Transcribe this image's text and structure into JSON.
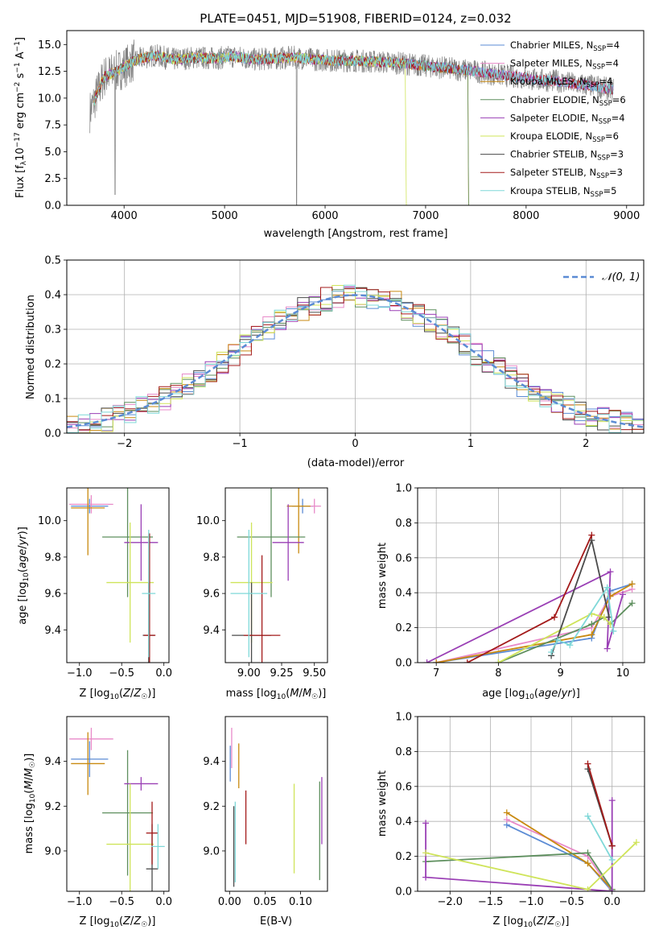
{
  "chart_data": [
    {
      "id": "spectrum",
      "type": "line",
      "title": "PLATE=0451, MJD=51908, FIBERID=0124, z=0.032",
      "xlabel": "wavelength [Angstrom, rest frame]",
      "ylabel": "Flux [f_λ 10^-17 erg cm^-2 s^-1 A^-1]",
      "xlim": [
        3430,
        9170
      ],
      "ylim": [
        0,
        16.3
      ],
      "xticks": [
        4000,
        5000,
        6000,
        7000,
        8000,
        9000
      ],
      "yticks": [
        0.0,
        2.5,
        5.0,
        7.5,
        10.0,
        12.5,
        15.0
      ],
      "legend_placement": "top-right",
      "series": [
        {
          "name": "Chabrier MILES, N_SSP=4",
          "color": "#5b8bd4"
        },
        {
          "name": "Salpeter MILES, N_SSP=4",
          "color": "#e88ac9"
        },
        {
          "name": "Kroupa MILES, N_SSP=4",
          "color": "#c98a10"
        },
        {
          "name": "Chabrier ELODIE, N_SSP=6",
          "color": "#5e8f5e"
        },
        {
          "name": "Salpeter ELODIE, N_SSP=4",
          "color": "#9a3fb5"
        },
        {
          "name": "Kroupa ELODIE, N_SSP=6",
          "color": "#cfe45a"
        },
        {
          "name": "Chabrier STELIB, N_SSP=3",
          "color": "#4a4a4a"
        },
        {
          "name": "Salpeter STELIB, N_SSP=3",
          "color": "#a31a1a"
        },
        {
          "name": "Kroupa STELIB, N_SSP=5",
          "color": "#7fd8d8"
        }
      ],
      "continuum": {
        "x": [
          3650,
          3800,
          3950,
          4100,
          4300,
          4500,
          4700,
          4900,
          5100,
          5300,
          5500,
          5700,
          5900,
          6100,
          6300,
          6500,
          6700,
          6900,
          7100,
          7300,
          7500,
          7700,
          7900,
          8100,
          8300,
          8500,
          8700,
          8850
        ],
        "y": [
          8.5,
          12.0,
          12.6,
          13.5,
          14.0,
          13.6,
          13.8,
          13.7,
          13.9,
          13.6,
          13.7,
          13.8,
          13.6,
          13.5,
          13.5,
          13.4,
          13.3,
          13.1,
          12.9,
          12.7,
          12.5,
          12.2,
          12.0,
          11.7,
          11.6,
          11.3,
          11.1,
          10.8
        ]
      },
      "truncations": [
        {
          "series": "Kroupa ELODIE, N_SSP=6",
          "end_x": 6800
        },
        {
          "series": "Kroupa MILES, N_SSP=4",
          "end_x": 7420
        },
        {
          "series": "Chabrier ELODIE, N_SSP=6",
          "end_x": 7420
        }
      ]
    },
    {
      "id": "residuals",
      "type": "line",
      "xlabel": "(data-model)/error",
      "ylabel": "Normed distribution",
      "xlim": [
        -2.5,
        2.5
      ],
      "ylim": [
        0,
        0.5
      ],
      "xticks": [
        -2,
        -1,
        0,
        1,
        2
      ],
      "yticks": [
        0.0,
        0.1,
        0.2,
        0.3,
        0.4,
        0.5
      ],
      "grid": true,
      "legend_placement": "top-right",
      "reference": {
        "name": "𝒩(0, 1)",
        "color": "#5b8bd4",
        "style": "dashed"
      },
      "bin_width": 0.1
    },
    {
      "id": "age-vs-Z",
      "type": "scatter",
      "xlabel": "Z [log10(Z/Z☉)]",
      "ylabel": "age [log10(age/yr)]",
      "xlim": [
        -1.15,
        0.06
      ],
      "ylim": [
        9.22,
        10.18
      ],
      "xticks": [
        -1.0,
        -0.5,
        0.0
      ],
      "yticks": [
        9.4,
        9.6,
        9.8,
        10.0
      ],
      "points": [
        {
          "series": "Chabrier MILES, N_SSP=4",
          "x": -0.88,
          "y": 10.08,
          "xerr": 0.22,
          "yerr": 0.04
        },
        {
          "series": "Salpeter MILES, N_SSP=4",
          "x": -0.86,
          "y": 10.09,
          "xerr": 0.26,
          "yerr": 0.05
        },
        {
          "series": "Kroupa MILES, N_SSP=4",
          "x": -0.9,
          "y": 10.07,
          "xerr": 0.2,
          "yerr": 0.26
        },
        {
          "series": "Chabrier ELODIE, N_SSP=6",
          "x": -0.43,
          "y": 9.91,
          "xerr": 0.3,
          "yerr": 0.33
        },
        {
          "series": "Salpeter ELODIE, N_SSP=4",
          "x": -0.27,
          "y": 9.88,
          "xerr": 0.2,
          "yerr": 0.21
        },
        {
          "series": "Kroupa ELODIE, N_SSP=6",
          "x": -0.4,
          "y": 9.66,
          "xerr": 0.28,
          "yerr": 0.33
        },
        {
          "series": "Chabrier STELIB, N_SSP=3",
          "x": -0.18,
          "y": 9.37,
          "xerr": 0.07,
          "yerr": 0.29
        },
        {
          "series": "Salpeter STELIB, N_SSP=3",
          "x": -0.17,
          "y": 9.37,
          "xerr": 0.07,
          "yerr": 0.56
        },
        {
          "series": "Kroupa STELIB, N_SSP=5",
          "x": -0.18,
          "y": 9.6,
          "xerr": 0.08,
          "yerr": 0.35
        }
      ]
    },
    {
      "id": "age-vs-mass",
      "type": "scatter",
      "xlabel": "mass [log10(M/M☉)]",
      "ylabel": "",
      "xlim": [
        8.82,
        9.6
      ],
      "ylim": [
        9.22,
        10.18
      ],
      "xticks": [
        9.0,
        9.25,
        9.5
      ],
      "yticks": [
        9.4,
        9.6,
        9.8,
        10.0
      ],
      "points": [
        {
          "series": "Chabrier MILES, N_SSP=4",
          "x": 9.41,
          "y": 10.08,
          "xerr": 0.08,
          "yerr": 0.04
        },
        {
          "series": "Salpeter MILES, N_SSP=4",
          "x": 9.5,
          "y": 10.08,
          "xerr": 0.05,
          "yerr": 0.04
        },
        {
          "series": "Kroupa MILES, N_SSP=4",
          "x": 9.38,
          "y": 10.08,
          "xerr": 0.09,
          "yerr": 0.26
        },
        {
          "series": "Chabrier ELODIE, N_SSP=6",
          "x": 9.17,
          "y": 9.91,
          "xerr": 0.26,
          "yerr": 0.33
        },
        {
          "series": "Salpeter ELODIE, N_SSP=4",
          "x": 9.3,
          "y": 9.88,
          "xerr": 0.12,
          "yerr": 0.21
        },
        {
          "series": "Kroupa ELODIE, N_SSP=6",
          "x": 9.02,
          "y": 9.66,
          "xerr": 0.16,
          "yerr": 0.33
        },
        {
          "series": "Chabrier STELIB, N_SSP=3",
          "x": 9.02,
          "y": 9.37,
          "xerr": 0.15,
          "yerr": 0.29
        },
        {
          "series": "Salpeter STELIB, N_SSP=3",
          "x": 9.1,
          "y": 9.37,
          "xerr": 0.14,
          "yerr": 0.44
        },
        {
          "series": "Kroupa STELIB, N_SSP=5",
          "x": 9.0,
          "y": 9.6,
          "xerr": 0.14,
          "yerr": 0.35
        }
      ]
    },
    {
      "id": "weight-vs-age",
      "type": "line",
      "xlabel": "age [log10(age/yr)]",
      "ylabel": "mass weight",
      "xlim": [
        6.7,
        10.35
      ],
      "ylim": [
        0,
        1
      ],
      "xticks": [
        7,
        8,
        9,
        10
      ],
      "yticks": [
        0.0,
        0.2,
        0.4,
        0.6,
        0.8,
        1.0
      ],
      "grid": true,
      "series": [
        {
          "name": "Chabrier MILES, N_SSP=4",
          "x": [
            7.0,
            9.5,
            9.8,
            10.15
          ],
          "y": [
            0.0,
            0.14,
            0.41,
            0.45
          ]
        },
        {
          "name": "Salpeter MILES, N_SSP=4",
          "x": [
            7.0,
            9.5,
            9.8,
            10.15
          ],
          "y": [
            0.0,
            0.2,
            0.38,
            0.42
          ]
        },
        {
          "name": "Kroupa MILES, N_SSP=4",
          "x": [
            7.0,
            9.5,
            9.8,
            10.15
          ],
          "y": [
            0.0,
            0.16,
            0.38,
            0.45
          ]
        },
        {
          "name": "Chabrier ELODIE, N_SSP=6",
          "x": [
            8.0,
            9.5,
            9.7,
            9.8,
            10.15
          ],
          "y": [
            0.0,
            0.22,
            0.26,
            0.22,
            0.34
          ]
        },
        {
          "name": "Salpeter ELODIE, N_SSP=4",
          "x": [
            6.85,
            9.8,
            9.75,
            10.0
          ],
          "y": [
            0.0,
            0.52,
            0.08,
            0.39
          ]
        },
        {
          "name": "Kroupa ELODIE, N_SSP=6",
          "x": [
            8.0,
            9.5,
            9.7,
            9.8
          ],
          "y": [
            0.0,
            0.28,
            0.26,
            0.22
          ]
        },
        {
          "name": "Chabrier STELIB, N_SSP=3",
          "x": [
            8.85,
            9.5,
            9.78
          ],
          "y": [
            0.04,
            0.7,
            0.26
          ]
        },
        {
          "name": "Salpeter STELIB, N_SSP=3",
          "x": [
            7.5,
            8.9,
            9.5
          ],
          "y": [
            0.0,
            0.26,
            0.73
          ]
        },
        {
          "name": "Kroupa STELIB, N_SSP=5",
          "x": [
            8.85,
            8.95,
            9.15,
            9.75,
            9.85
          ],
          "y": [
            0.06,
            0.13,
            0.1,
            0.43,
            0.18
          ]
        }
      ]
    },
    {
      "id": "mass-vs-Z",
      "type": "scatter",
      "xlabel": "Z [log10(Z/Z☉)]",
      "ylabel": "mass [log10(M/M☉)]",
      "xlim": [
        -1.15,
        0.06
      ],
      "ylim": [
        8.82,
        9.6
      ],
      "xticks": [
        -1.0,
        -0.5,
        0.0
      ],
      "yticks": [
        9.0,
        9.2,
        9.4
      ],
      "points": [
        {
          "series": "Chabrier MILES, N_SSP=4",
          "x": -0.88,
          "y": 9.41,
          "xerr": 0.22,
          "yerr": 0.08
        },
        {
          "series": "Salpeter MILES, N_SSP=4",
          "x": -0.86,
          "y": 9.5,
          "xerr": 0.26,
          "yerr": 0.05
        },
        {
          "series": "Kroupa MILES, N_SSP=4",
          "x": -0.9,
          "y": 9.39,
          "xerr": 0.2,
          "yerr": 0.14
        },
        {
          "series": "Chabrier ELODIE, N_SSP=6",
          "x": -0.43,
          "y": 9.17,
          "xerr": 0.3,
          "yerr": 0.28
        },
        {
          "series": "Salpeter ELODIE, N_SSP=4",
          "x": -0.27,
          "y": 9.3,
          "xerr": 0.2,
          "yerr": 0.03
        },
        {
          "series": "Kroupa ELODIE, N_SSP=6",
          "x": -0.4,
          "y": 9.03,
          "xerr": 0.28,
          "yerr": 0.27
        },
        {
          "series": "Chabrier STELIB, N_SSP=3",
          "x": -0.14,
          "y": 8.92,
          "xerr": 0.07,
          "yerr": 0.2
        },
        {
          "series": "Salpeter STELIB, N_SSP=3",
          "x": -0.14,
          "y": 9.08,
          "xerr": 0.07,
          "yerr": 0.14
        },
        {
          "series": "Kroupa STELIB, N_SSP=5",
          "x": -0.07,
          "y": 9.02,
          "xerr": 0.08,
          "yerr": 0.1
        }
      ]
    },
    {
      "id": "mass-vs-EBV",
      "type": "scatter",
      "xlabel": "E(B-V)",
      "ylabel": "",
      "xlim": [
        -0.006,
        0.138
      ],
      "ylim": [
        8.82,
        9.6
      ],
      "xticks": [
        0.0,
        0.05,
        0.1
      ],
      "yticks": [
        9.0,
        9.2,
        9.4
      ],
      "points": [
        {
          "series": "Chabrier MILES, N_SSP=4",
          "x": 0.001,
          "y": 9.39,
          "yerr": 0.08
        },
        {
          "series": "Salpeter MILES, N_SSP=4",
          "x": 0.003,
          "y": 9.46,
          "yerr": 0.09
        },
        {
          "series": "Kroupa MILES, N_SSP=4",
          "x": 0.013,
          "y": 9.38,
          "yerr": 0.1
        },
        {
          "series": "Chabrier ELODIE, N_SSP=6",
          "x": 0.127,
          "y": 9.09,
          "yerr": 0.22
        },
        {
          "series": "Salpeter ELODIE, N_SSP=4",
          "x": 0.13,
          "y": 9.18,
          "yerr": 0.15
        },
        {
          "series": "Kroupa ELODIE, N_SSP=6",
          "x": 0.091,
          "y": 9.1,
          "yerr": 0.2
        },
        {
          "series": "Chabrier STELIB, N_SSP=3",
          "x": 0.006,
          "y": 9.02,
          "yerr": 0.18
        },
        {
          "series": "Salpeter STELIB, N_SSP=3",
          "x": 0.023,
          "y": 9.15,
          "yerr": 0.12
        },
        {
          "series": "Kroupa STELIB, N_SSP=5",
          "x": 0.008,
          "y": 9.04,
          "yerr": 0.18
        }
      ]
    },
    {
      "id": "weight-vs-Z",
      "type": "line",
      "xlabel": "Z [log10(Z/Z☉)]",
      "ylabel": "mass weight",
      "xlim": [
        -2.4,
        0.4
      ],
      "ylim": [
        0,
        1
      ],
      "xticks": [
        -2.0,
        -1.5,
        -1.0,
        -0.5,
        0.0
      ],
      "yticks": [
        0.0,
        0.2,
        0.4,
        0.6,
        0.8,
        1.0
      ],
      "grid": true,
      "series": [
        {
          "name": "Chabrier MILES, N_SSP=4",
          "x": [
            -1.3,
            -0.3,
            0.0
          ],
          "y": [
            0.38,
            0.16,
            0.0
          ]
        },
        {
          "name": "Salpeter MILES, N_SSP=4",
          "x": [
            -1.3,
            -0.3,
            0.0
          ],
          "y": [
            0.41,
            0.2,
            0.0
          ]
        },
        {
          "name": "Kroupa MILES, N_SSP=4",
          "x": [
            -1.3,
            -0.3,
            0.0
          ],
          "y": [
            0.45,
            0.16,
            0.01
          ]
        },
        {
          "name": "Chabrier ELODIE, N_SSP=6",
          "x": [
            -2.3,
            -0.3,
            0.0
          ],
          "y": [
            0.17,
            0.22,
            0.01
          ]
        },
        {
          "name": "Salpeter ELODIE, N_SSP=4",
          "x": [
            -2.3,
            -2.3,
            0.0,
            0.0,
            0.0
          ],
          "y": [
            0.39,
            0.08,
            0.0,
            0.26,
            0.52
          ]
        },
        {
          "name": "Kroupa ELODIE, N_SSP=6",
          "x": [
            -2.3,
            -0.3,
            0.3
          ],
          "y": [
            0.22,
            0.01,
            0.28
          ]
        },
        {
          "name": "Chabrier STELIB, N_SSP=3",
          "x": [
            -0.3,
            0.0
          ],
          "y": [
            0.7,
            0.26
          ]
        },
        {
          "name": "Salpeter STELIB, N_SSP=3",
          "x": [
            -0.3,
            0.0
          ],
          "y": [
            0.73,
            0.26
          ]
        },
        {
          "name": "Kroupa STELIB, N_SSP=5",
          "x": [
            -0.3,
            0.0
          ],
          "y": [
            0.43,
            0.18
          ]
        }
      ]
    }
  ]
}
